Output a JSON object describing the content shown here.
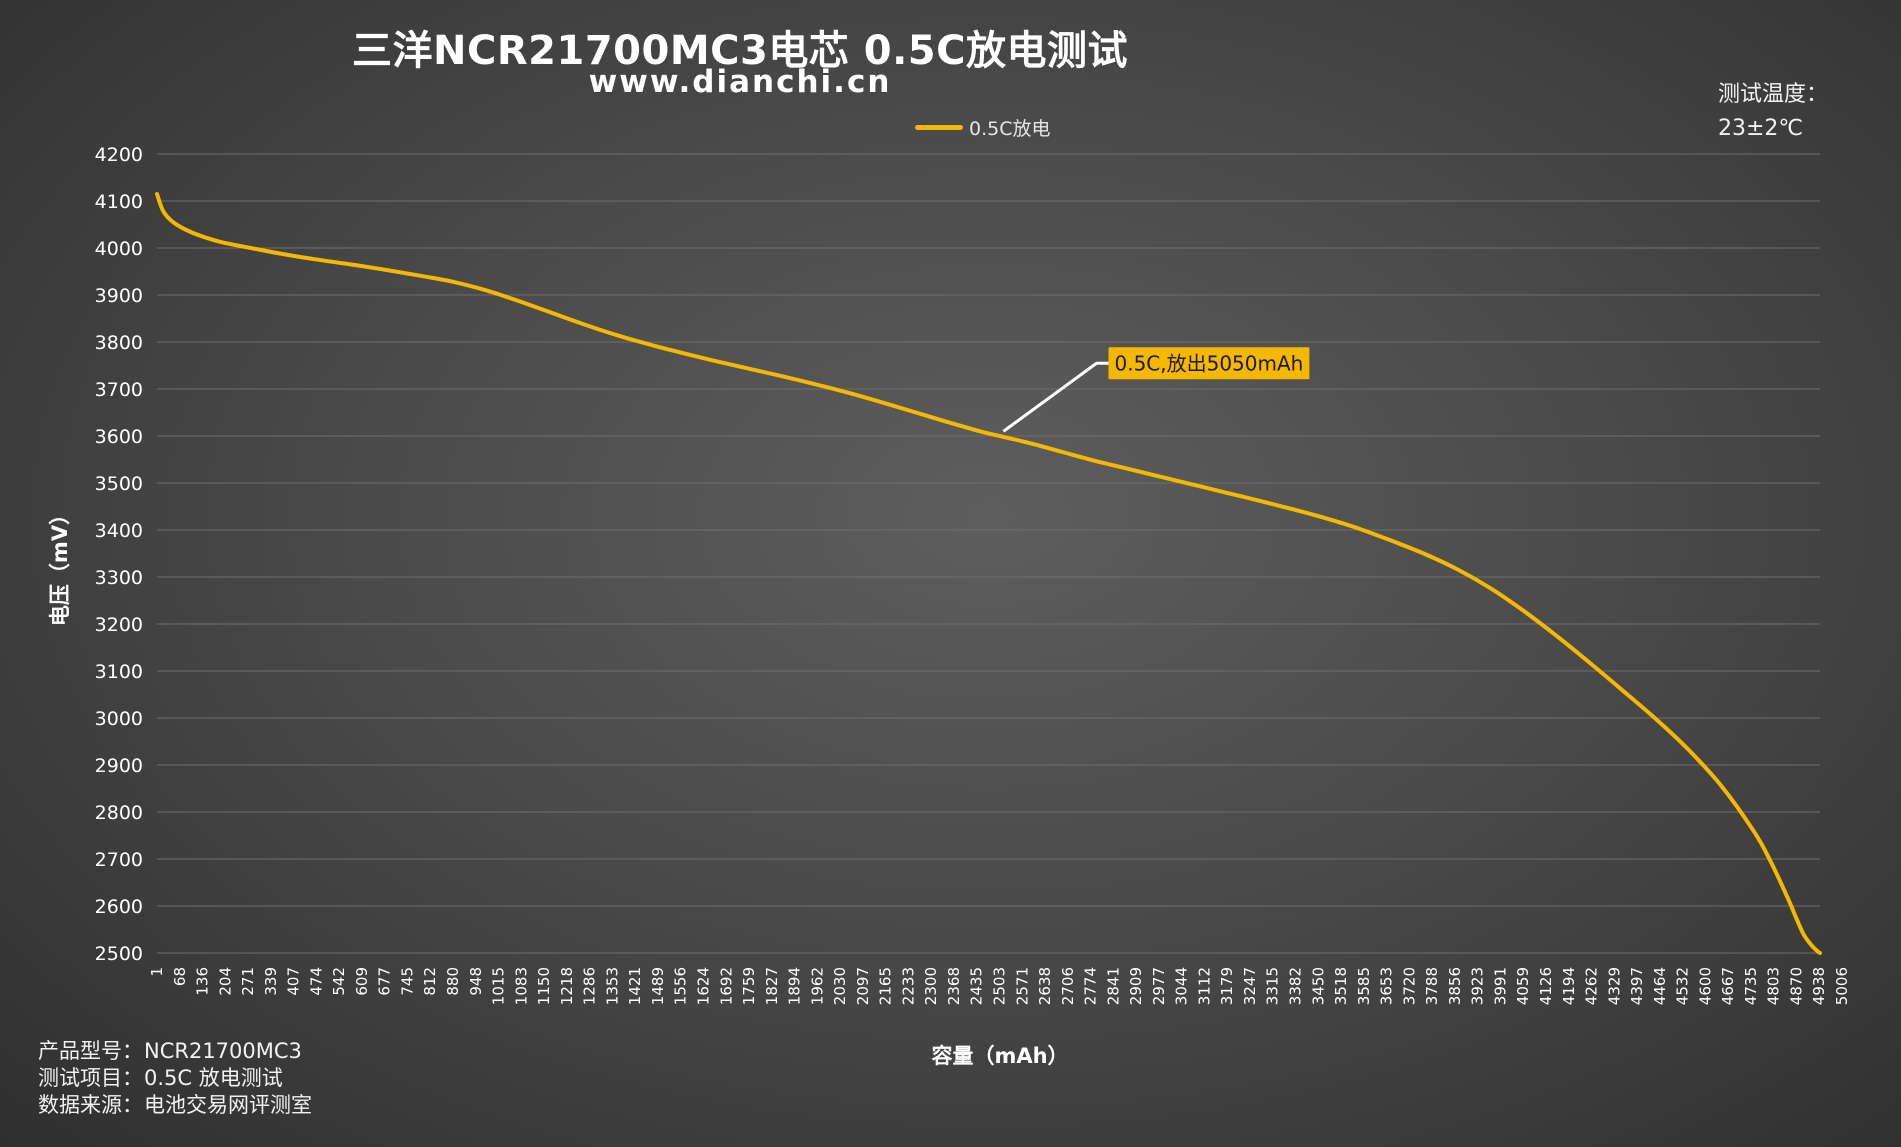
{
  "chart_data": {
    "type": "line",
    "title": "三洋NCR21700MC3电芯 0.5C放电测试",
    "subtitle": "www.dianchi.cn",
    "xlabel": "容量（mAh）",
    "ylabel": "电压（mV）",
    "ylim": [
      2500,
      4200
    ],
    "yticks": [
      2500,
      2600,
      2700,
      2800,
      2900,
      3000,
      3100,
      3200,
      3300,
      3400,
      3500,
      3600,
      3700,
      3800,
      3900,
      4000,
      4100,
      4200
    ],
    "xlim": [
      1,
      5050
    ],
    "x_tick_labels": [
      "1",
      "68",
      "136",
      "204",
      "271",
      "339",
      "407",
      "474",
      "542",
      "609",
      "677",
      "745",
      "812",
      "880",
      "948",
      "1015",
      "1083",
      "1150",
      "1218",
      "1286",
      "1353",
      "1421",
      "1489",
      "1556",
      "1624",
      "1692",
      "1759",
      "1827",
      "1894",
      "1962",
      "2030",
      "2097",
      "2165",
      "2233",
      "2300",
      "2368",
      "2435",
      "2503",
      "2571",
      "2638",
      "2706",
      "2774",
      "2841",
      "2909",
      "2977",
      "3044",
      "3112",
      "3179",
      "3247",
      "3315",
      "3382",
      "3450",
      "3518",
      "3585",
      "3653",
      "3720",
      "3788",
      "3856",
      "3923",
      "3991",
      "4059",
      "4126",
      "4194",
      "4262",
      "4329",
      "4397",
      "4464",
      "4532",
      "4600",
      "4667",
      "4735",
      "4803",
      "4870",
      "4938",
      "5006"
    ],
    "grid": true,
    "legend_position": "top-center",
    "series": [
      {
        "name": "0.5C放电",
        "color": "#f5b800",
        "x": [
          1,
          20,
          50,
          100,
          150,
          200,
          300,
          400,
          500,
          600,
          700,
          800,
          900,
          1000,
          1100,
          1200,
          1300,
          1400,
          1500,
          1600,
          1700,
          1800,
          1900,
          2000,
          2100,
          2200,
          2300,
          2400,
          2500,
          2571,
          2650,
          2750,
          2850,
          2950,
          3050,
          3150,
          3250,
          3350,
          3450,
          3550,
          3650,
          3750,
          3850,
          3950,
          4050,
          4150,
          4250,
          4350,
          4450,
          4550,
          4650,
          4750,
          4850,
          4900,
          4950,
          4980,
          5000,
          5020,
          5040,
          5050
        ],
        "y": [
          4115,
          4078,
          4055,
          4035,
          4022,
          4012,
          3998,
          3985,
          3974,
          3964,
          3953,
          3941,
          3928,
          3910,
          3887,
          3862,
          3837,
          3814,
          3794,
          3776,
          3759,
          3743,
          3727,
          3710,
          3692,
          3672,
          3651,
          3630,
          3610,
          3598,
          3585,
          3566,
          3547,
          3530,
          3513,
          3496,
          3479,
          3462,
          3444,
          3425,
          3403,
          3377,
          3349,
          3316,
          3276,
          3228,
          3175,
          3118,
          3059,
          2999,
          2933,
          2856,
          2758,
          2695,
          2620,
          2571,
          2540,
          2520,
          2505,
          2500
        ]
      }
    ],
    "annotations": [
      {
        "text": "0.5C,放出5050mAh",
        "x": 2571,
        "y": 3610
      }
    ]
  },
  "test_temp": {
    "label": "测试温度：",
    "value": "23±2℃"
  },
  "info": [
    {
      "key": "产品型号：",
      "value": "NCR21700MC3"
    },
    {
      "key": "测试项目：",
      "value": "0.5C 放电测试"
    },
    {
      "key": "数据来源：",
      "value": "电池交易网评测室"
    }
  ],
  "colors": {
    "grid": "#6e6e6e",
    "annotation_bg": "#f5b800",
    "annotation_text": "#1a1a1a",
    "leader": "#ffffff"
  }
}
